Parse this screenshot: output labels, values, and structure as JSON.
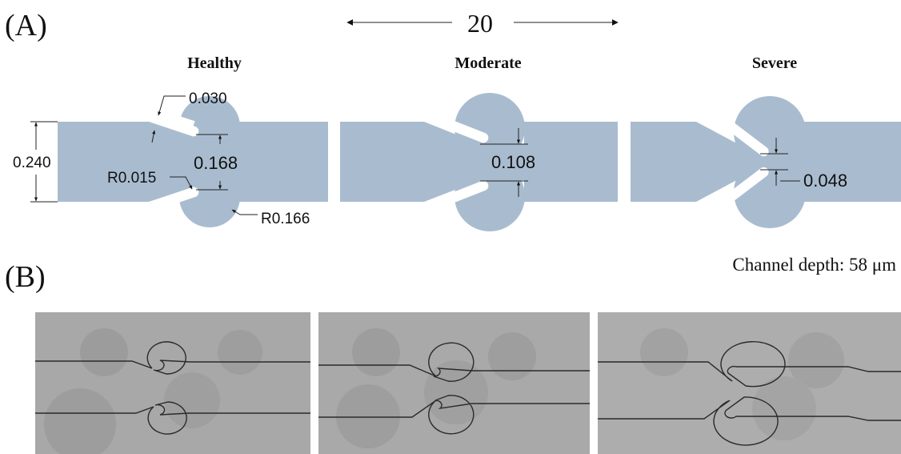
{
  "panel_a": {
    "label": "(A)",
    "scale": "20",
    "panels": [
      {
        "title": "Healthy",
        "dims": [
          "0.030",
          "0.240",
          "0.168",
          "R0.015",
          "R0.166"
        ]
      },
      {
        "title": "Moderate",
        "dims": [
          "0.108"
        ]
      },
      {
        "title": "Severe",
        "dims": [
          "0.048"
        ]
      }
    ]
  },
  "panel_b": {
    "label": "(B)",
    "note": "Channel depth: 58 μm"
  }
}
